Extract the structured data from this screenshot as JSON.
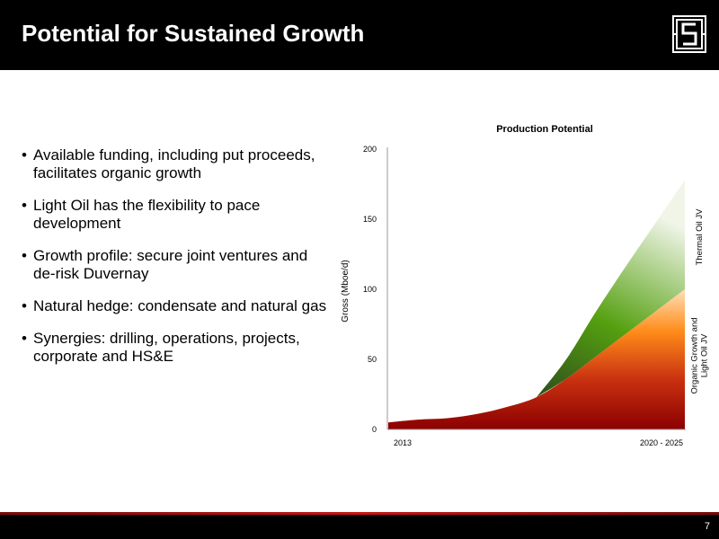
{
  "header": {
    "title": "Potential for Sustained Growth"
  },
  "bullets": [
    "Available funding, including put proceeds, facilitates organic growth",
    "Light Oil has the flexibility to pace development",
    "Growth profile: secure joint ventures and de-risk Duvernay",
    "Natural hedge: condensate and natural gas",
    "Synergies: drilling, operations, projects, corporate and HS&E"
  ],
  "footer": {
    "page_number": "7"
  },
  "colors": {
    "header_bg": "#000000",
    "organic_dark": "#8b0000",
    "organic_light": "#ffa040",
    "thermal_dark": "#2e5a1c",
    "thermal_light": "#e0ecd0"
  },
  "chart_data": {
    "type": "area",
    "title": "Production Potential",
    "ylabel": "Gross (Mboe/d)",
    "xlabel": "",
    "ylim": [
      0,
      200
    ],
    "yticks": [
      0,
      50,
      100,
      150,
      200
    ],
    "x_tick_labels": [
      "2013",
      "2020 - 2025"
    ],
    "stacked": true,
    "x": [
      0,
      0.1,
      0.2,
      0.3,
      0.4,
      0.5,
      0.6,
      0.7,
      0.8,
      0.9,
      1.0
    ],
    "series": [
      {
        "name": "Organic Growth and Light Oil JV",
        "values": [
          5,
          7,
          8,
          11,
          16,
          23,
          36,
          52,
          68,
          84,
          100
        ]
      },
      {
        "name": "Thermal Oil JV",
        "values": [
          0,
          0,
          0,
          0,
          0,
          0,
          14,
          32,
          48,
          63,
          78
        ]
      }
    ]
  }
}
